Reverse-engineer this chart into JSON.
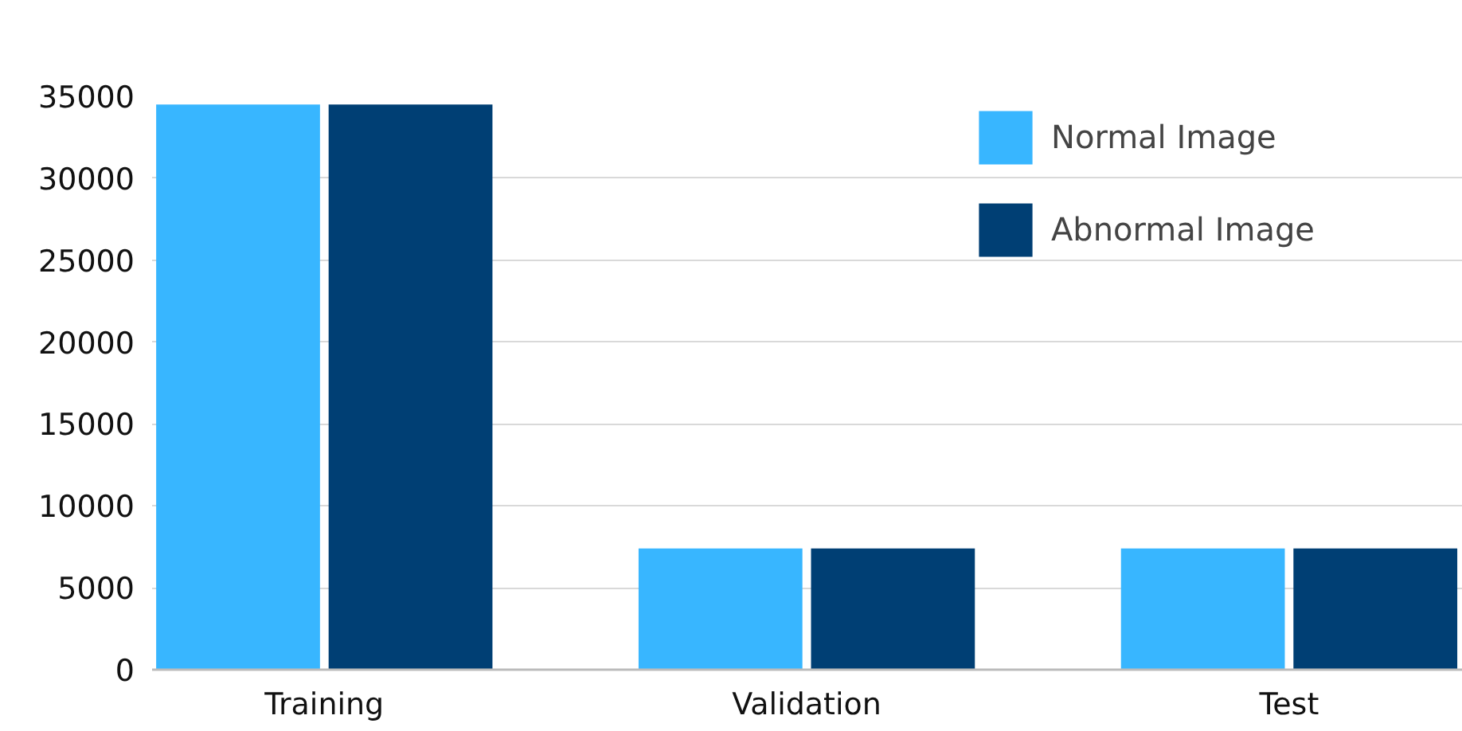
{
  "chart_data": {
    "type": "bar",
    "categories": [
      "Training",
      "Validation",
      "Test"
    ],
    "series": [
      {
        "name": "Normal Image",
        "color": "#38b6ff",
        "values": [
          34500,
          7400,
          7400
        ]
      },
      {
        "name": "Abnormal Image",
        "color": "#003f74",
        "values": [
          34500,
          7400,
          7400
        ]
      }
    ],
    "ylim": [
      0,
      35000
    ],
    "yticks": [
      0,
      5000,
      10000,
      15000,
      20000,
      25000,
      30000,
      35000
    ],
    "grid": "y",
    "legend": "top right"
  }
}
